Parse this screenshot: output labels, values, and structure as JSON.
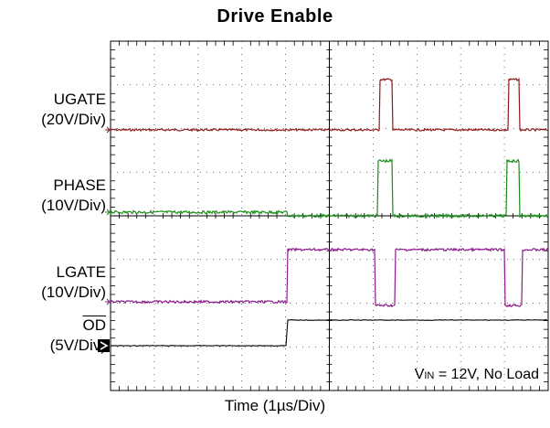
{
  "chart_data": {
    "type": "line",
    "title": "Drive Enable",
    "xlabel": "Time (1µs/Div)",
    "x_divisions": 10,
    "y_divisions": 8,
    "grid": true,
    "annotation": {
      "prefix": "V",
      "subscript": "IN",
      "suffix": " = 12V, No Load"
    },
    "channels": [
      {
        "name_line1": "UGATE",
        "name_line2": "(20V/Div)",
        "color": "#8b1a1a",
        "marker": "->",
        "description": "low baseline with two positive pulses",
        "level": "low",
        "pulses": [
          {
            "start": 6.15,
            "end": 6.45
          },
          {
            "start": 9.1,
            "end": 9.35
          }
        ]
      },
      {
        "name_line1": "PHASE",
        "name_line2": "(10V/Div)",
        "color": "#1a8c1a",
        "marker": "->",
        "description": "low baseline, slight step at 4.05, pulses coincide with UGATE",
        "pulses": [
          {
            "start": 6.1,
            "end": 6.45
          },
          {
            "start": 9.05,
            "end": 9.35
          }
        ]
      },
      {
        "name_line1": "LGATE",
        "name_line2": "(10V/Div)",
        "color": "#8b1a8b",
        "marker": "->",
        "description": "low until 4.05 then high, drops low during UGATE pulses",
        "rise": 4.05,
        "dips": [
          {
            "start": 6.05,
            "end": 6.5
          },
          {
            "start": 9.0,
            "end": 9.4
          }
        ]
      },
      {
        "name_line1": "OD",
        "name_line2": "(5V/Div)",
        "color": "#000000",
        "marker": "arrow-box",
        "description": "low until 4.05 then high",
        "rise": 4.05
      }
    ]
  }
}
